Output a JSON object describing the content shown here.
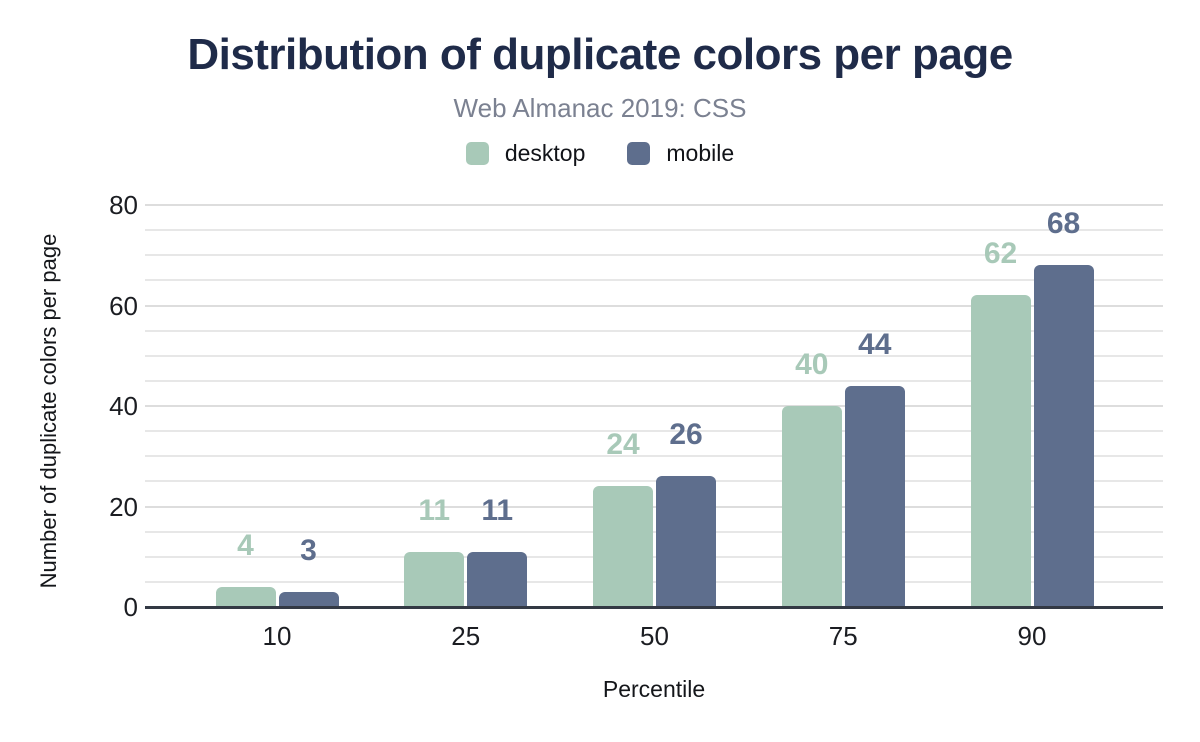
{
  "chart_data": {
    "type": "bar",
    "title": "Distribution of duplicate colors per page",
    "subtitle": "Web Almanac 2019: CSS",
    "xlabel": "Percentile",
    "ylabel": "Number of duplicate colors per page",
    "categories": [
      "10",
      "25",
      "50",
      "75",
      "90"
    ],
    "series": [
      {
        "name": "desktop",
        "color": "#a8c9b8",
        "values": [
          4,
          11,
          24,
          40,
          62
        ]
      },
      {
        "name": "mobile",
        "color": "#5e6e8d",
        "values": [
          3,
          11,
          26,
          44,
          68
        ]
      }
    ],
    "ylim": [
      0,
      80
    ],
    "yticks": [
      0,
      20,
      40,
      60,
      80
    ],
    "grid": {
      "on": true,
      "minor_step": 5,
      "major_step": 20
    },
    "legend_position": "top",
    "value_labels": true
  },
  "colors": {
    "title": "#1f2b49",
    "subtitle": "#7b8191",
    "axis_line": "#333944",
    "gridline_minor": "#e7e7e7",
    "gridline_major": "#dddddd",
    "tick_text": "#1b1d22",
    "background": "#ffffff"
  }
}
